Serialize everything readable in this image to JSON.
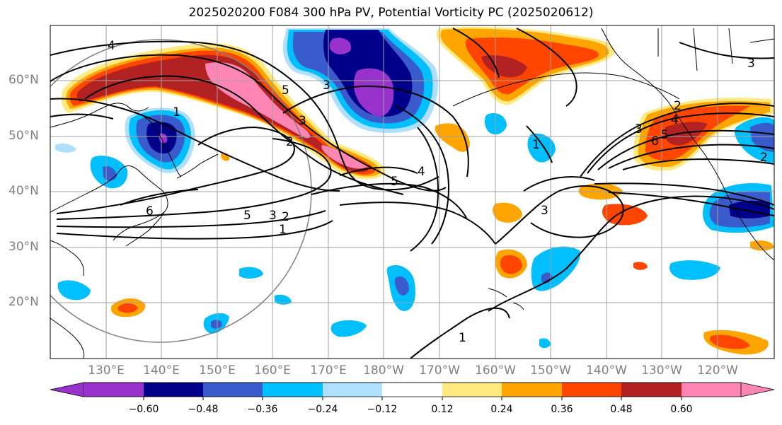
{
  "map": {
    "title": "2025020200 F084 300 hPa PV, Potential Vorticity PC (2025020612)",
    "region": "North Pacific",
    "latitude_labels": [
      "60°N",
      "50°N",
      "40°N",
      "30°N",
      "20°N"
    ],
    "longitude_labels": [
      "130°E",
      "140°E",
      "150°E",
      "160°E",
      "170°E",
      "180°W",
      "170°W",
      "160°W",
      "150°W",
      "140°W",
      "130°W",
      "120°W"
    ],
    "contour_labels": [
      "4",
      "1",
      "2",
      "3",
      "5",
      "6",
      "5",
      "3",
      "2",
      "1",
      "5",
      "4",
      "2",
      "3",
      "4",
      "5",
      "6",
      "3",
      "1",
      "3",
      "1",
      "2",
      "3"
    ],
    "grid": true,
    "coastlines": true
  },
  "colorbar": {
    "ticks": [
      "−0.60",
      "−0.48",
      "−0.36",
      "−0.24",
      "−0.12",
      "0.12",
      "0.24",
      "0.36",
      "0.48",
      "0.60"
    ],
    "colors": [
      "#9932cc",
      "#00008b",
      "#3a5bcc",
      "#00bfff",
      "#b0e0ff",
      "#ffffff",
      "#ffea80",
      "#ffa500",
      "#ff4500",
      "#b22222",
      "#ff86b4",
      "#ff86b4"
    ],
    "extend": "both"
  },
  "colors": {
    "neg_strong": "#9932cc",
    "neg_dark": "#00008b",
    "neg_mid": "#3a5bcc",
    "neg_light": "#00bfff",
    "neg_pale": "#b0e0ff",
    "pos_pale": "#ffea80",
    "pos_light": "#ffa500",
    "pos_mid": "#ff4500",
    "pos_dark": "#b22222",
    "pos_strong": "#ff86b4",
    "grid": "#a0a0a0",
    "ring": "#808080"
  }
}
